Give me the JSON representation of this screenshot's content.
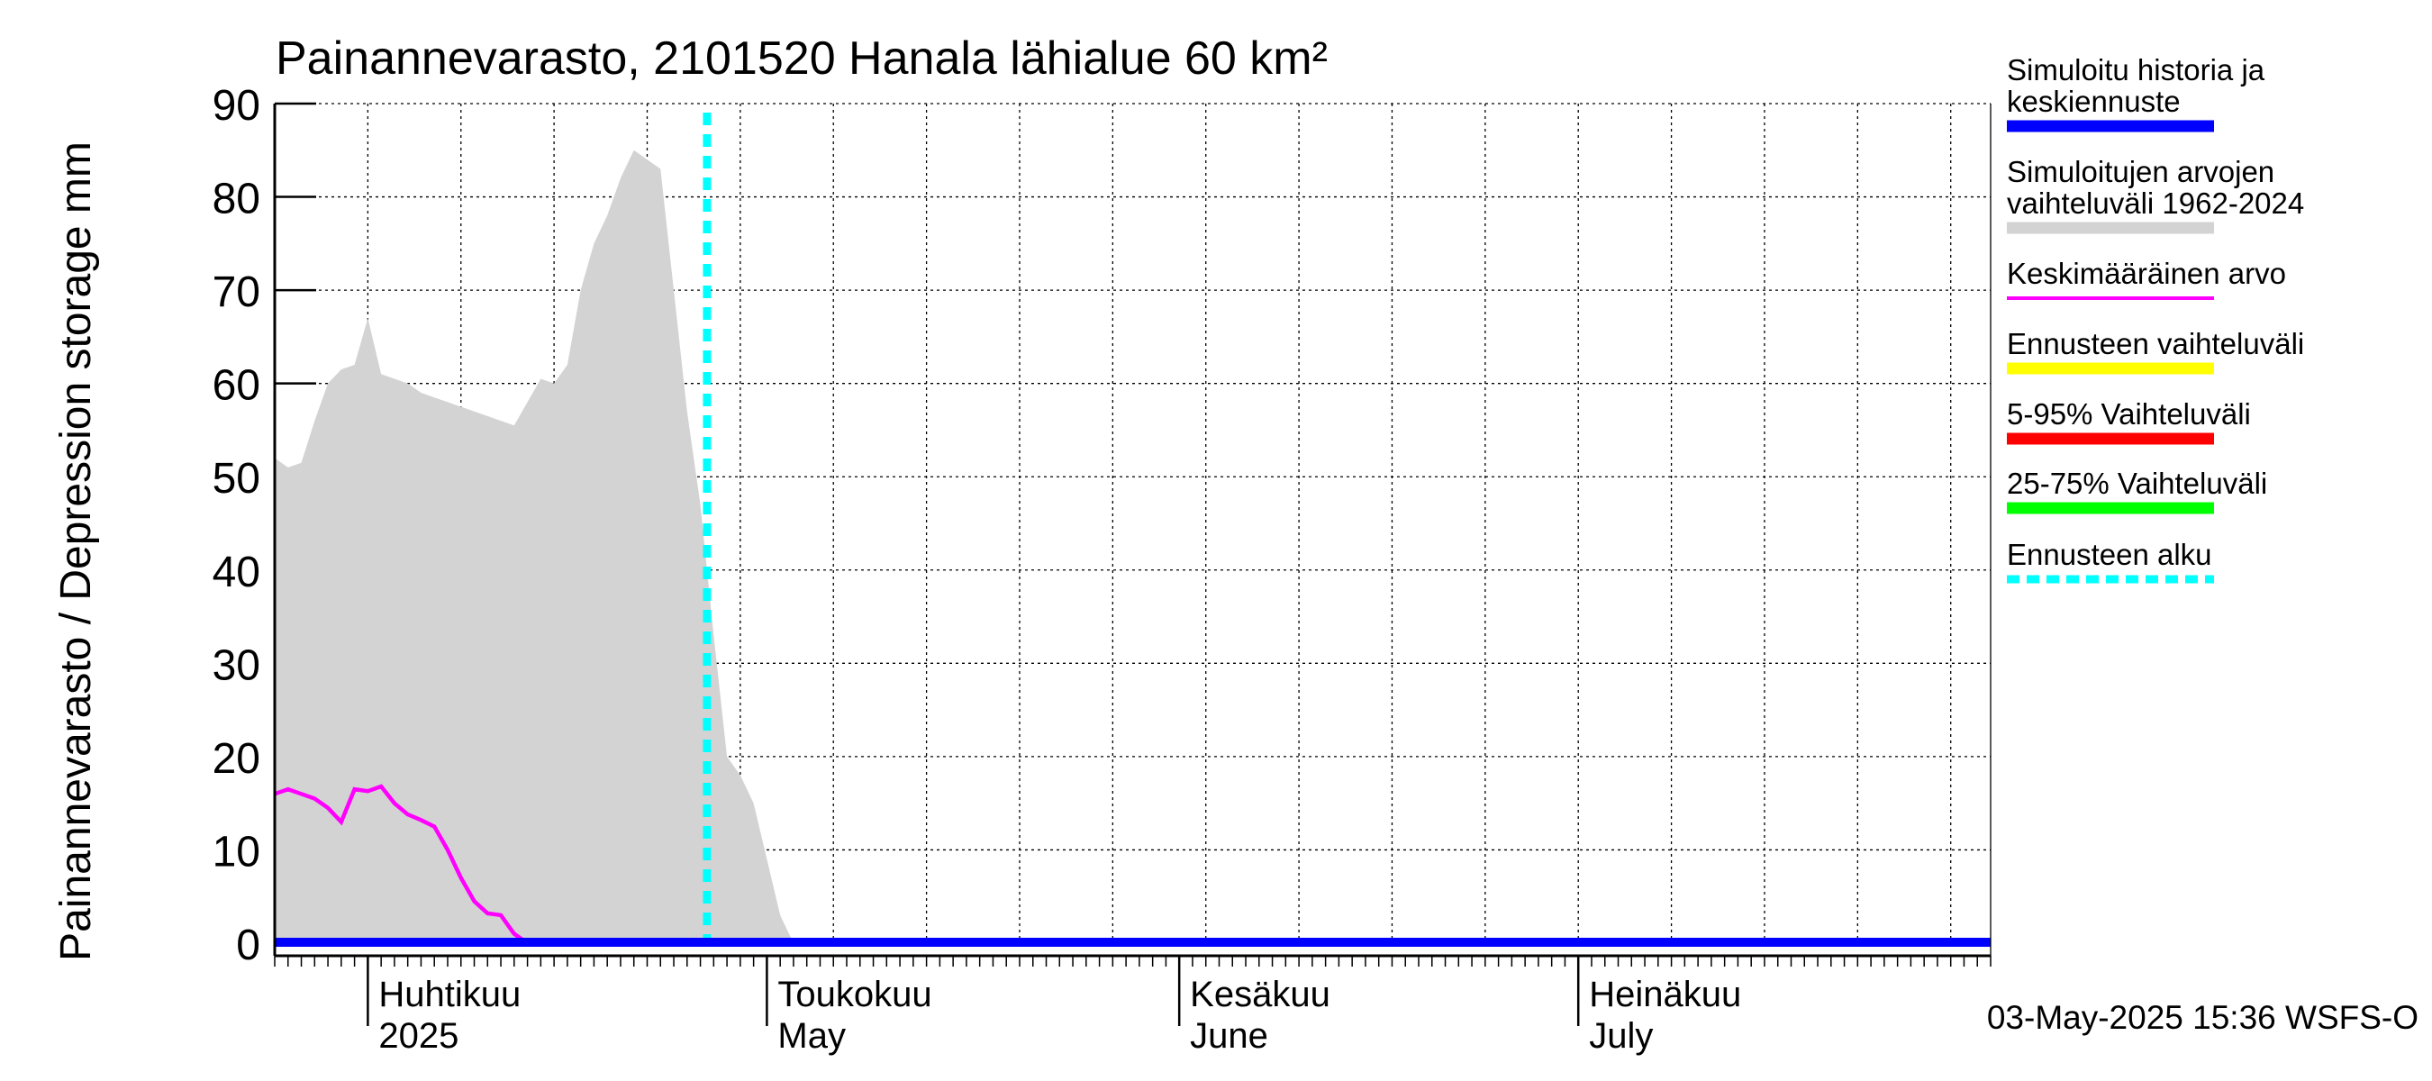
{
  "chart_data": {
    "type": "area",
    "title": "Painannevarasto, 2101520 Hanala lähialue 60 km²",
    "ylabel": "Painannevarasto / Depression storage    mm",
    "xlabel": "",
    "ylim": [
      0,
      90
    ],
    "yticks": [
      0,
      10,
      20,
      30,
      40,
      50,
      60,
      70,
      80,
      90
    ],
    "grid": true,
    "x_unit": "day index from 2025-03-25",
    "x_range": [
      0,
      129
    ],
    "month_ticks": [
      {
        "day": 7,
        "label_fi": "Huhtikuu",
        "label_en": "2025"
      },
      {
        "day": 37,
        "label_fi": "Toukokuu",
        "label_en": "May"
      },
      {
        "day": 68,
        "label_fi": "Kesäkuu",
        "label_en": "June"
      },
      {
        "day": 98,
        "label_fi": "Heinäkuu",
        "label_en": "July"
      }
    ],
    "series": [
      {
        "name": "Simuloitujen arvojen vaihteluväli 1962-2024",
        "kind": "band",
        "color": "#d3d3d3",
        "x": [
          0,
          1,
          2,
          3,
          4,
          5,
          6,
          7,
          8,
          9,
          10,
          11,
          12,
          13,
          14,
          15,
          16,
          17,
          18,
          19,
          20,
          21,
          22,
          23,
          24,
          25,
          26,
          27,
          28,
          29,
          30,
          31,
          32,
          33,
          34,
          35,
          36,
          37,
          38,
          39,
          40,
          41,
          42,
          43,
          44,
          45,
          46,
          47
        ],
        "low": [
          0,
          0,
          0,
          0,
          0,
          0,
          0,
          0,
          0,
          0,
          0,
          0,
          0,
          0,
          0,
          0,
          0,
          0,
          0,
          0,
          0,
          0,
          0,
          0,
          0,
          0,
          0,
          0,
          0,
          0,
          0,
          0,
          0,
          0,
          0,
          0,
          0,
          0,
          0,
          0,
          0,
          0,
          0,
          0,
          0,
          0,
          0,
          0
        ],
        "high": [
          52,
          51,
          51.5,
          56,
          60,
          61.5,
          62,
          67,
          61,
          60.5,
          60,
          59,
          58.5,
          58,
          57.5,
          57,
          56.5,
          56,
          55.5,
          58,
          60.5,
          60,
          62,
          70,
          75,
          78,
          82,
          85,
          84,
          83,
          70,
          57,
          47,
          33,
          20,
          18,
          15,
          9,
          3,
          0,
          0,
          0,
          0,
          0,
          0,
          0,
          0,
          0
        ]
      },
      {
        "name": "Keskimääräinen arvo",
        "kind": "line",
        "color": "#ff00ff",
        "x": [
          0,
          1,
          2,
          3,
          4,
          5,
          6,
          7,
          8,
          9,
          10,
          11,
          12,
          13,
          14,
          15,
          16,
          17,
          18,
          19,
          20,
          21,
          22,
          129
        ],
        "values": [
          16,
          16.5,
          16,
          15.5,
          14.5,
          13,
          16.5,
          16.3,
          16.8,
          15,
          13.8,
          13.2,
          12.5,
          10,
          7,
          4.5,
          3.2,
          3,
          1,
          0,
          0,
          0,
          0,
          0
        ]
      },
      {
        "name": "Simuloitu historia ja keskiennuste",
        "kind": "line",
        "color": "#0000ff",
        "x": [
          0,
          129
        ],
        "values": [
          0,
          0
        ]
      },
      {
        "name": "Ennusteen alku",
        "kind": "vline",
        "color": "#00ffff",
        "x": 32.5
      }
    ],
    "legend": [
      {
        "label": "Simuloitu historia ja keskiennuste",
        "color": "#0000ff",
        "style": "thick"
      },
      {
        "label": "Simuloitujen arvojen vaihteluväli 1962-2024",
        "color": "#d3d3d3",
        "style": "thick"
      },
      {
        "label": "Keskimääräinen arvo",
        "color": "#ff00ff",
        "style": "thin"
      },
      {
        "label": "Ennusteen vaihteluväli",
        "color": "#ffff00",
        "style": "thick"
      },
      {
        "label": "5-95% Vaihteluväli",
        "color": "#ff0000",
        "style": "thick"
      },
      {
        "label": "25-75% Vaihteluväli",
        "color": "#00ff00",
        "style": "thick"
      },
      {
        "label": "Ennusteen alku",
        "color": "#00ffff",
        "style": "dashed"
      }
    ],
    "legend_position": "right",
    "footer": "03-May-2025 15:36 WSFS-O"
  }
}
